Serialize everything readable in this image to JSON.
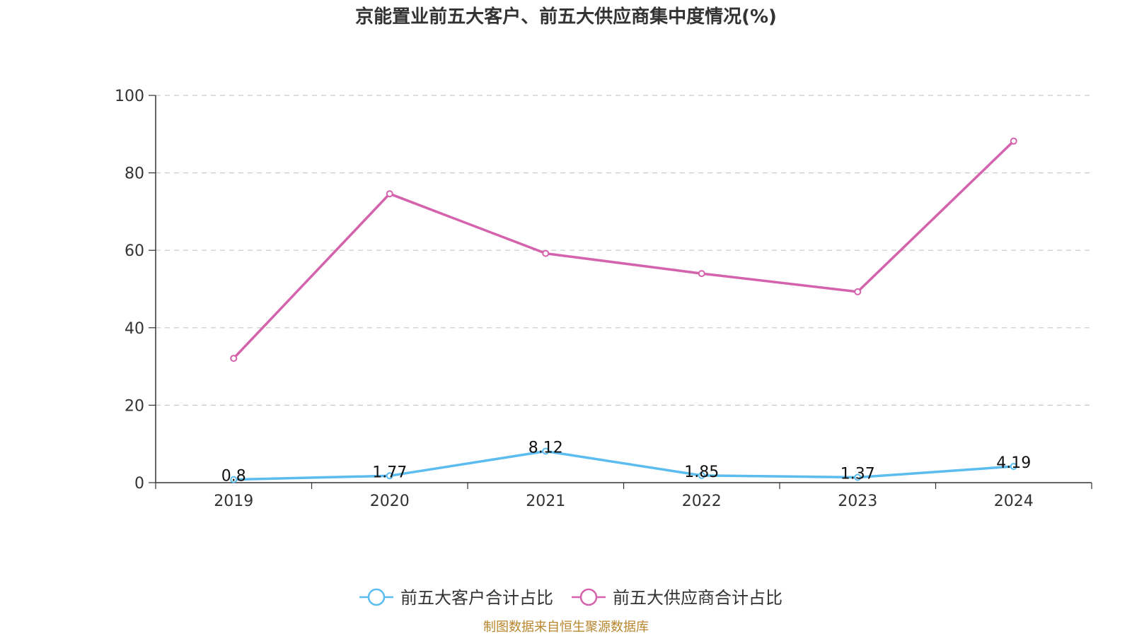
{
  "chart_data": {
    "type": "line",
    "title": "京能置业前五大客户、前五大供应商集中度情况(%)",
    "categories": [
      "2019",
      "2020",
      "2021",
      "2022",
      "2023",
      "2024"
    ],
    "ylim": [
      0,
      100
    ],
    "yticks": [
      0,
      20,
      40,
      60,
      80,
      100
    ],
    "grid": true,
    "legend_position": "bottom-center",
    "series": [
      {
        "name": "前五大客户合计占比",
        "color": "#5bbcf0",
        "values": [
          0.8,
          1.77,
          8.12,
          1.85,
          1.37,
          4.19
        ],
        "labels": [
          "0.8",
          "1.77",
          "8.12",
          "1.85",
          "1.37",
          "4.19"
        ]
      },
      {
        "name": "前五大供应商合计占比",
        "color": "#d462ac",
        "values": [
          32.1,
          74.6,
          59.2,
          54.0,
          49.3,
          88.2
        ],
        "labels": []
      }
    ]
  },
  "source": "制图数据来自恒生聚源数据库"
}
